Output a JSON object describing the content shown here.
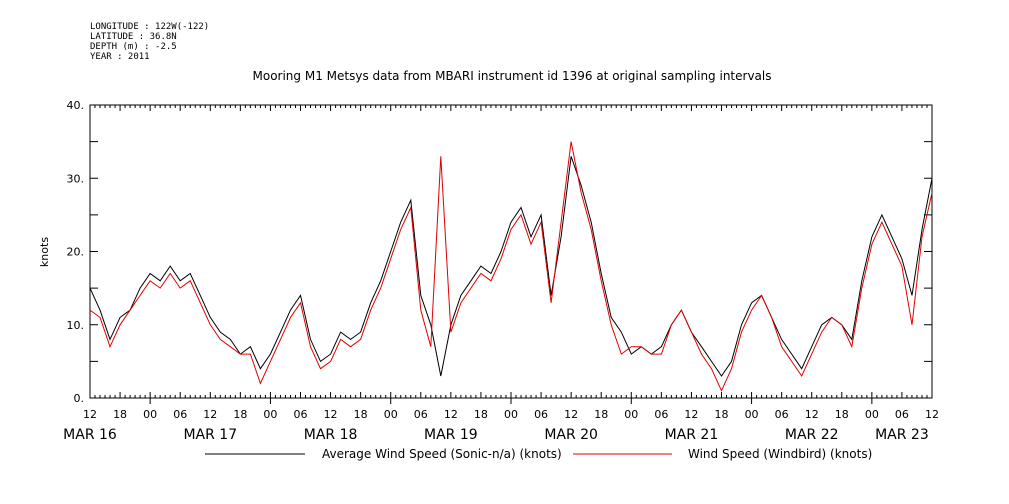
{
  "header": {
    "longitude": "LONGITUDE : 122W(-122)",
    "latitude": "LATITUDE : 36.8N",
    "depth": "DEPTH (m) : -2.5",
    "year": "YEAR : 2011"
  },
  "chart_data": {
    "type": "line",
    "title": "Mooring M1 Metsys data from MBARI instrument id 1396 at original sampling intervals",
    "xlabel": "",
    "ylabel": "knots",
    "ylim": [
      0,
      40
    ],
    "y_ticks": [
      "0.",
      "10.",
      "20.",
      "30.",
      "40."
    ],
    "x_hour_start": 12,
    "x_hour_end": 180,
    "x_hour_labels": [
      "12",
      "18",
      "00",
      "06",
      "12",
      "18",
      "00",
      "06",
      "12",
      "18",
      "00",
      "06",
      "12",
      "18",
      "00",
      "06",
      "12",
      "18",
      "00",
      "06",
      "12",
      "18",
      "00",
      "06",
      "12",
      "18",
      "00",
      "06",
      "12"
    ],
    "date_labels": [
      {
        "label": "MAR 16",
        "hour": 12
      },
      {
        "label": "MAR 17",
        "hour": 36
      },
      {
        "label": "MAR 18",
        "hour": 60
      },
      {
        "label": "MAR 19",
        "hour": 84
      },
      {
        "label": "MAR 20",
        "hour": 108
      },
      {
        "label": "MAR 21",
        "hour": 132
      },
      {
        "label": "MAR 22",
        "hour": 156
      },
      {
        "label": "MAR 23",
        "hour": 174
      }
    ],
    "legend": [
      {
        "name": "Average Wind Speed (Sonic-n/a) (knots)",
        "color": "#000000"
      },
      {
        "name": "Wind Speed (Windbird) (knots)",
        "color": "#e00000"
      }
    ],
    "x_hours": [
      12,
      14,
      16,
      18,
      20,
      22,
      24,
      26,
      28,
      30,
      32,
      34,
      36,
      38,
      40,
      42,
      44,
      46,
      48,
      50,
      52,
      54,
      56,
      58,
      60,
      62,
      64,
      66,
      68,
      70,
      72,
      74,
      76,
      78,
      80,
      82,
      84,
      86,
      88,
      90,
      92,
      94,
      96,
      98,
      100,
      102,
      104,
      106,
      108,
      110,
      112,
      114,
      116,
      118,
      120,
      122,
      124,
      126,
      128,
      130,
      132,
      134,
      136,
      138,
      140,
      142,
      144,
      146,
      148,
      150,
      152,
      154,
      156,
      158,
      160,
      162,
      164,
      166,
      168,
      170,
      172,
      174,
      176,
      178,
      180
    ],
    "series": [
      {
        "name": "Average Wind Speed (Sonic-n/a) (knots)",
        "color": "#000000",
        "values": [
          15,
          12,
          8,
          11,
          12,
          15,
          17,
          16,
          18,
          16,
          17,
          14,
          11,
          9,
          8,
          6,
          7,
          4,
          6,
          9,
          12,
          14,
          8,
          5,
          6,
          9,
          8,
          9,
          13,
          16,
          20,
          24,
          27,
          14,
          10,
          3,
          10,
          14,
          16,
          18,
          17,
          20,
          24,
          26,
          22,
          25,
          14,
          22,
          33,
          29,
          24,
          17,
          11,
          9,
          6,
          7,
          6,
          7,
          10,
          12,
          9,
          7,
          5,
          3,
          5,
          10,
          13,
          14,
          11,
          8,
          6,
          4,
          7,
          10,
          11,
          10,
          8,
          16,
          22,
          25,
          22,
          19,
          14,
          23,
          30
        ]
      },
      {
        "name": "Wind Speed (Windbird) (knots)",
        "color": "#e00000",
        "values": [
          12,
          11,
          7,
          10,
          12,
          14,
          16,
          15,
          17,
          15,
          16,
          13,
          10,
          8,
          7,
          6,
          6,
          2,
          5,
          8,
          11,
          13,
          7,
          4,
          5,
          8,
          7,
          8,
          12,
          15,
          19,
          23,
          26,
          12,
          7,
          33,
          9,
          13,
          15,
          17,
          16,
          19,
          23,
          25,
          21,
          24,
          13,
          24,
          35,
          28,
          23,
          16,
          10,
          6,
          7,
          7,
          6,
          6,
          10,
          12,
          9,
          6,
          4,
          1,
          4,
          9,
          12,
          14,
          11,
          7,
          5,
          3,
          6,
          9,
          11,
          10,
          7,
          15,
          21,
          24,
          21,
          18,
          10,
          22,
          28
        ]
      }
    ]
  }
}
